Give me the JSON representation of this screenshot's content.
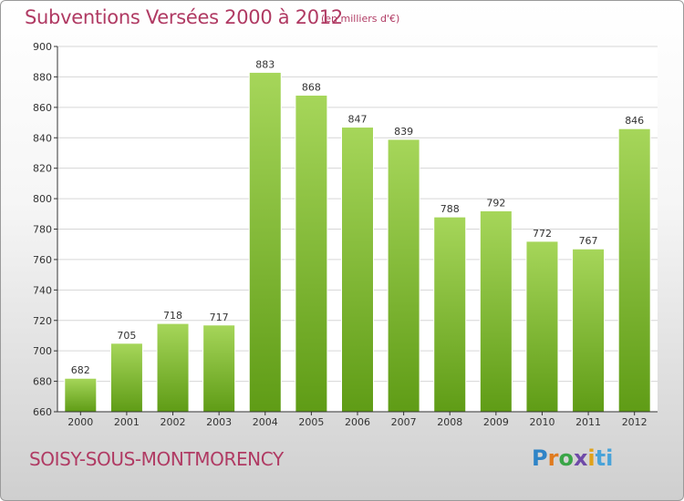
{
  "header": {
    "title": "Subventions Versées 2000 à 2012",
    "subtitle": "(en milliers d'€)"
  },
  "footer": {
    "place": "SOISY-SOUS-MONTMORENCY",
    "logo_parts": [
      "P",
      "r",
      "o",
      "x",
      "i",
      "ti"
    ]
  },
  "colors": {
    "title": "#b03a63",
    "bar_light": "#a6d65a",
    "bar_dark": "#5f9c16",
    "grid": "#d6d6d6",
    "axis": "#333333"
  },
  "chart_data": {
    "type": "bar",
    "title": "Subventions Versées 2000 à 2012",
    "subtitle": "(en milliers d'€)",
    "categories": [
      "2000",
      "2001",
      "2002",
      "2003",
      "2004",
      "2005",
      "2006",
      "2007",
      "2008",
      "2009",
      "2010",
      "2011",
      "2012"
    ],
    "values": [
      682,
      705,
      718,
      717,
      883,
      868,
      847,
      839,
      788,
      792,
      772,
      767,
      846
    ],
    "ylim": [
      660,
      900
    ],
    "yticks": [
      660,
      680,
      700,
      720,
      740,
      760,
      780,
      800,
      820,
      840,
      860,
      880,
      900
    ],
    "grid": true,
    "data_labels": true
  }
}
